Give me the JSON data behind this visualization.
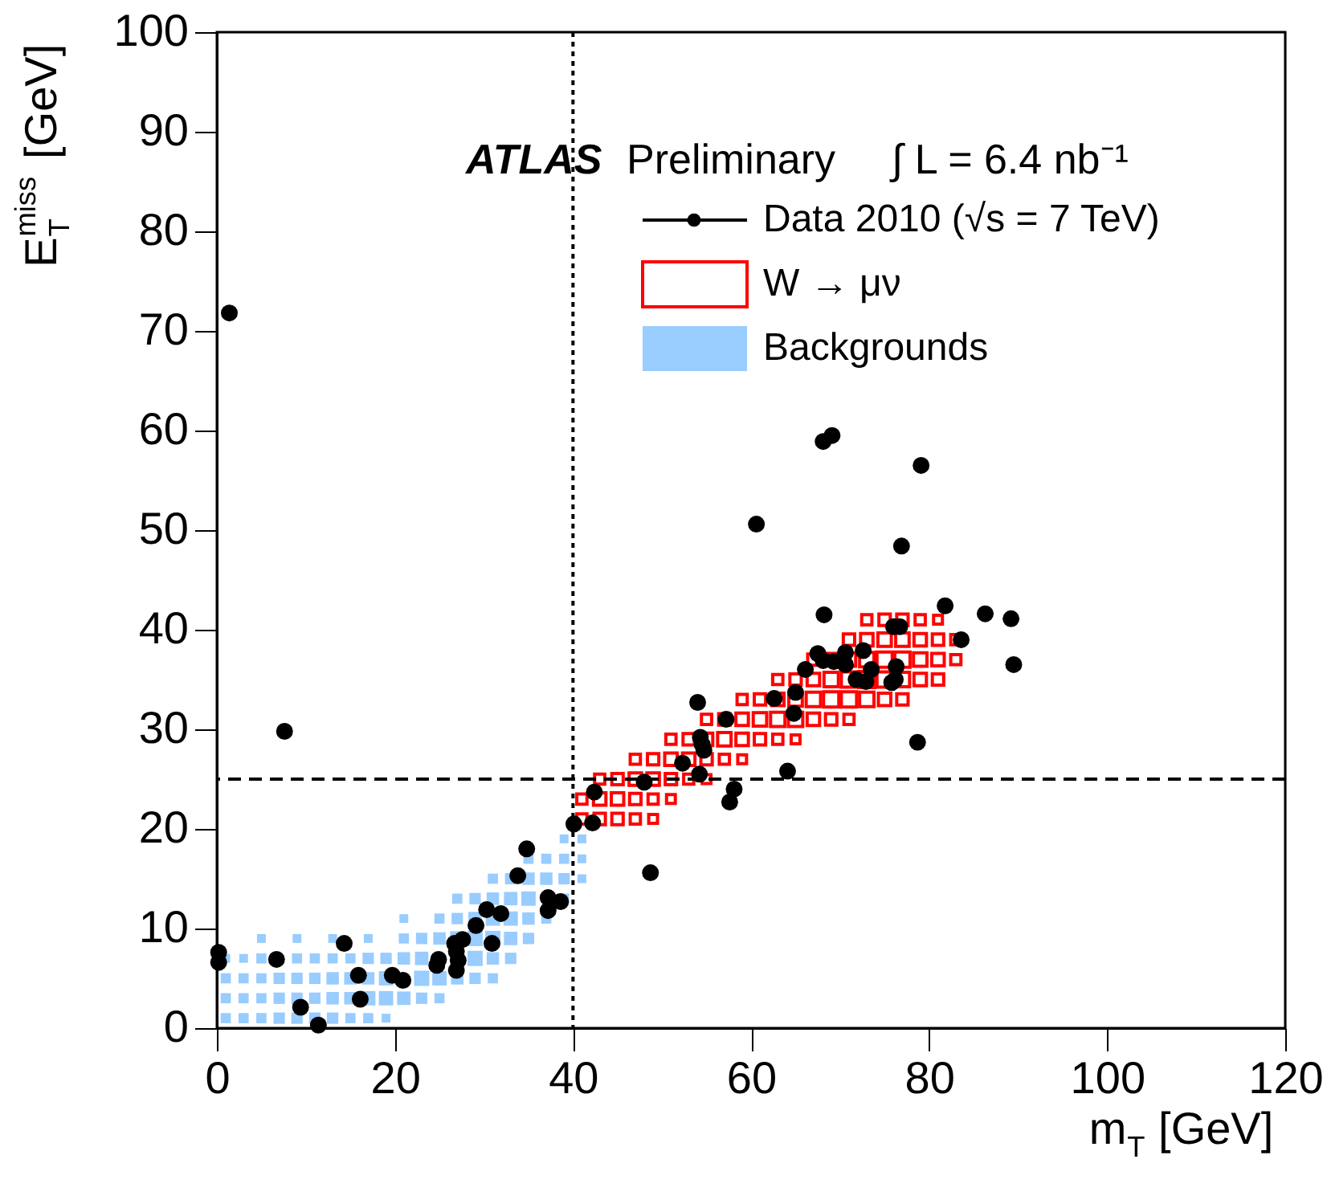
{
  "chart_data": {
    "type": "scatter",
    "xlabel": "m$_{T}$ [GeV]",
    "ylabel": "E$_{T}$$^{miss}$ [GeV]",
    "annotations": [
      "ATLAS",
      "Preliminary",
      "∫ L = 6.4 nb⁻¹"
    ],
    "xlim": [
      0,
      120
    ],
    "xticks": [
      0,
      20,
      40,
      60,
      80,
      100,
      120
    ],
    "ylim": [
      0,
      100
    ],
    "yticks": [
      0,
      10,
      20,
      30,
      40,
      50,
      60,
      70,
      80,
      90,
      100
    ],
    "grid": false,
    "legend": "top right",
    "ref_lines": [
      {
        "axis": "x",
        "value": 40,
        "line_style": "dotted",
        "color": "#000000"
      },
      {
        "axis": "y",
        "value": 25,
        "line_style": "dashed",
        "color": "#000000"
      }
    ],
    "series": [
      {
        "name": "Data 2010 (√s = 7 TeV)",
        "marker": "circle",
        "color": "#000000",
        "x": [
          0.2,
          0.2,
          1.4,
          7.6,
          6.7,
          14.3,
          9.4,
          11.4,
          16.1,
          15.9,
          19.7,
          20.9,
          24.7,
          24.9,
          26.7,
          27.6,
          26.9,
          27.1,
          26.9,
          29.1,
          30.3,
          30.9,
          31.9,
          33.8,
          34.8,
          37.2,
          37.2,
          38.6,
          40.1,
          42.2,
          42.4,
          48.7,
          79.1,
          60.6,
          76.9,
          68.2,
          81.8,
          86.3,
          89.2,
          76.0,
          76.7,
          83.6,
          89.5,
          67.5,
          68.1,
          69.3,
          70.6,
          70.6,
          72.6,
          73.5,
          76.3,
          71.8,
          72.9,
          75.8,
          76.2,
          66.1,
          65.0,
          62.6,
          64.8,
          54.0,
          57.2,
          54.3,
          54.5,
          54.7,
          52.3,
          54.2,
          64.1,
          78.7,
          48.0,
          58.1,
          57.6,
          68.1,
          69.1
        ],
        "values": [
          7.6,
          6.6,
          71.8,
          29.8,
          6.9,
          8.5,
          2.1,
          0.3,
          2.9,
          5.3,
          5.3,
          4.8,
          6.3,
          6.9,
          8.5,
          8.9,
          7.7,
          6.8,
          5.8,
          10.3,
          11.9,
          8.5,
          11.5,
          15.3,
          18.0,
          13.1,
          11.8,
          12.7,
          20.5,
          20.6,
          23.7,
          15.6,
          56.5,
          50.6,
          48.4,
          41.5,
          42.4,
          41.6,
          41.1,
          40.3,
          40.3,
          39.0,
          36.5,
          37.6,
          36.9,
          36.8,
          37.7,
          36.5,
          37.9,
          36.0,
          36.3,
          35.0,
          34.8,
          34.7,
          35.0,
          36.0,
          33.7,
          33.1,
          31.6,
          32.7,
          31.0,
          29.2,
          28.5,
          27.9,
          26.6,
          25.5,
          25.8,
          28.7,
          24.7,
          24.0,
          22.7,
          58.9,
          59.5
        ]
      },
      {
        "name": "W → μν",
        "type": "bubble",
        "marker": "square",
        "color": "#ff0000",
        "x": [
          41,
          43,
          45,
          47,
          49,
          41,
          43,
          45,
          47,
          49,
          51,
          43,
          45,
          47,
          49,
          51,
          53,
          55,
          47,
          49,
          51,
          53,
          55,
          57,
          59,
          51,
          53,
          55,
          57,
          59,
          61,
          63,
          65,
          55,
          57,
          59,
          61,
          63,
          65,
          67,
          69,
          71,
          59,
          61,
          63,
          65,
          67,
          69,
          71,
          73,
          75,
          77,
          63,
          65,
          67,
          69,
          71,
          73,
          75,
          77,
          79,
          81,
          67,
          69,
          71,
          73,
          75,
          77,
          79,
          81,
          83,
          71,
          73,
          75,
          77,
          79,
          81,
          83,
          73,
          75,
          77,
          79,
          81
        ],
        "values": [
          21,
          21,
          21,
          21,
          21,
          23,
          23,
          23,
          23,
          23,
          23,
          25,
          25,
          25,
          25,
          25,
          25,
          25,
          27,
          27,
          27,
          27,
          27,
          27,
          27,
          29,
          29,
          29,
          29,
          29,
          29,
          29,
          29,
          31,
          31,
          31,
          31,
          31,
          31,
          31,
          31,
          31,
          33,
          33,
          33,
          33,
          33,
          33,
          33,
          33,
          33,
          33,
          35,
          35,
          35,
          35,
          35,
          35,
          35,
          35,
          35,
          35,
          37,
          37,
          37,
          37,
          37,
          37,
          37,
          37,
          37,
          39,
          39,
          39,
          39,
          39,
          39,
          39,
          41,
          41,
          41,
          41,
          41
        ],
        "sizes": [
          0.4,
          0.5,
          0.5,
          0.4,
          0.3,
          0.4,
          0.6,
          0.6,
          0.5,
          0.4,
          0.3,
          0.4,
          0.5,
          0.6,
          0.6,
          0.5,
          0.4,
          0.3,
          0.4,
          0.5,
          0.6,
          0.6,
          0.5,
          0.4,
          0.3,
          0.4,
          0.5,
          0.6,
          0.7,
          0.6,
          0.5,
          0.4,
          0.3,
          0.4,
          0.5,
          0.6,
          0.7,
          0.8,
          0.8,
          0.6,
          0.5,
          0.4,
          0.4,
          0.5,
          0.6,
          0.7,
          0.8,
          0.9,
          0.9,
          0.8,
          0.6,
          0.5,
          0.4,
          0.5,
          0.6,
          0.8,
          0.9,
          1.0,
          0.9,
          0.8,
          0.6,
          0.5,
          0.5,
          0.6,
          0.7,
          0.8,
          0.9,
          0.9,
          0.7,
          0.6,
          0.4,
          0.5,
          0.6,
          0.7,
          0.7,
          0.6,
          0.5,
          0.4,
          0.4,
          0.5,
          0.5,
          0.4,
          0.3
        ]
      },
      {
        "name": "Backgrounds",
        "type": "bubble",
        "marker": "square",
        "color": "#99ccff",
        "x": [
          1,
          3,
          5,
          7,
          9,
          11,
          13,
          15,
          17,
          19,
          1,
          3,
          5,
          7,
          9,
          11,
          13,
          15,
          17,
          19,
          21,
          23,
          25,
          1,
          3,
          5,
          7,
          9,
          11,
          13,
          15,
          17,
          19,
          21,
          23,
          25,
          27,
          29,
          31,
          1,
          3,
          5,
          9,
          11,
          13,
          15,
          17,
          19,
          21,
          23,
          25,
          27,
          29,
          31,
          33,
          5,
          9,
          13,
          17,
          21,
          23,
          25,
          27,
          29,
          31,
          33,
          35,
          21,
          25,
          27,
          29,
          31,
          33,
          35,
          37,
          27,
          29,
          31,
          33,
          35,
          37,
          39,
          31,
          33,
          35,
          37,
          39,
          41,
          35,
          37,
          39,
          41,
          39,
          41
        ],
        "values": [
          1,
          1,
          1,
          1,
          1,
          1,
          1,
          1,
          1,
          1,
          3,
          3,
          3,
          3,
          3,
          3,
          3,
          3,
          3,
          3,
          3,
          3,
          3,
          5,
          5,
          5,
          5,
          5,
          5,
          5,
          5,
          5,
          5,
          null,
          5,
          5,
          5,
          5,
          5,
          7,
          7,
          7,
          7,
          7,
          7,
          7,
          7,
          7,
          7,
          7,
          null,
          null,
          7,
          7,
          7,
          9,
          9,
          9,
          9,
          9,
          9,
          9,
          9,
          9,
          9,
          9,
          9,
          11,
          11,
          11,
          11,
          11,
          11,
          11,
          11,
          13,
          13,
          13,
          13,
          13,
          null,
          13,
          15,
          15,
          15,
          15,
          15,
          15,
          17,
          17,
          17,
          17,
          19,
          19
        ],
        "sizes": [
          0.4,
          0.4,
          0.4,
          0.5,
          0.5,
          0.5,
          0.5,
          0.4,
          0.4,
          0.3,
          0.4,
          0.4,
          0.4,
          0.5,
          0.5,
          0.5,
          0.6,
          0.6,
          0.8,
          0.8,
          0.7,
          0.5,
          0.4,
          0.4,
          0.4,
          0.4,
          0.5,
          0.5,
          0.5,
          0.6,
          0.6,
          0.6,
          0.8,
          null,
          0.9,
          0.8,
          0.6,
          0.5,
          0.4,
          0.3,
          0.3,
          0.4,
          0.4,
          0.4,
          0.4,
          0.4,
          0.5,
          0.5,
          0.6,
          0.7,
          null,
          null,
          0.9,
          0.6,
          0.5,
          0.3,
          0.3,
          0.3,
          0.3,
          0.4,
          0.5,
          0.6,
          0.8,
          0.9,
          0.9,
          0.7,
          0.5,
          0.3,
          0.4,
          0.5,
          0.7,
          0.8,
          0.8,
          0.6,
          0.4,
          0.4,
          0.5,
          0.6,
          0.7,
          0.8,
          null,
          0.4,
          0.4,
          0.5,
          0.6,
          0.6,
          0.5,
          0.3,
          0.4,
          0.4,
          0.4,
          0.3,
          0.3,
          0.3
        ]
      }
    ]
  }
}
